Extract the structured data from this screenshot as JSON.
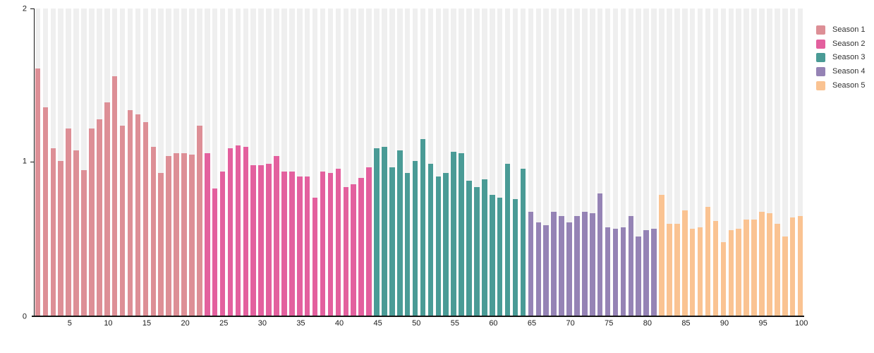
{
  "chart_data": {
    "type": "bar",
    "title": "",
    "xlabel": "",
    "ylabel": "",
    "x_range": [
      1,
      100
    ],
    "ylim": [
      0,
      2
    ],
    "y_tick_labels": [
      "0",
      "1",
      "2"
    ],
    "x_tick_labels": [
      "5",
      "10",
      "15",
      "20",
      "25",
      "30",
      "35",
      "40",
      "45",
      "50",
      "55",
      "60",
      "65",
      "70",
      "75",
      "80",
      "85",
      "90",
      "95",
      "100"
    ],
    "legend_position": "top-right",
    "grid": "background-stripes-per-bar",
    "background_stripe_color": "#efefef",
    "axis_color": "#141414",
    "series": [
      {
        "name": "Season 1",
        "color": "#dd8f96",
        "start_episode": 1,
        "values": [
          1.61,
          1.36,
          1.09,
          1.01,
          1.22,
          1.08,
          0.95,
          1.22,
          1.28,
          1.39,
          1.56,
          1.24,
          1.34,
          1.31,
          1.26,
          1.1,
          0.93,
          1.04,
          1.06,
          1.06,
          1.05,
          1.24
        ]
      },
      {
        "name": "Season 2",
        "color": "#e3609e",
        "start_episode": 23,
        "values": [
          1.06,
          0.83,
          0.94,
          1.09,
          1.11,
          1.1,
          0.98,
          0.98,
          0.99,
          1.04,
          0.94,
          0.94,
          0.91,
          0.91,
          0.77,
          0.94,
          0.93,
          0.96,
          0.84,
          0.86,
          0.9,
          0.97
        ]
      },
      {
        "name": "Season 3",
        "color": "#4a9b96",
        "start_episode": 45,
        "values": [
          1.09,
          1.1,
          0.97,
          1.08,
          0.93,
          1.01,
          1.15,
          0.99,
          0.91,
          0.93,
          1.07,
          1.06,
          0.88,
          0.84,
          0.89,
          0.79,
          0.77,
          0.99,
          0.76,
          0.96
        ]
      },
      {
        "name": "Season 4",
        "color": "#9583b5",
        "start_episode": 65,
        "values": [
          0.68,
          0.61,
          0.59,
          0.68,
          0.65,
          0.61,
          0.65,
          0.68,
          0.67,
          0.8,
          0.58,
          0.57,
          0.58,
          0.65,
          0.52,
          0.56,
          0.57
        ]
      },
      {
        "name": "Season 5",
        "color": "#fac392",
        "start_episode": 82,
        "values": [
          0.79,
          0.6,
          0.6,
          0.69,
          0.57,
          0.58,
          0.71,
          0.62,
          0.48,
          0.56,
          0.57,
          0.63,
          0.63,
          0.68,
          0.67,
          0.6,
          0.52,
          0.64,
          0.65
        ]
      }
    ]
  }
}
